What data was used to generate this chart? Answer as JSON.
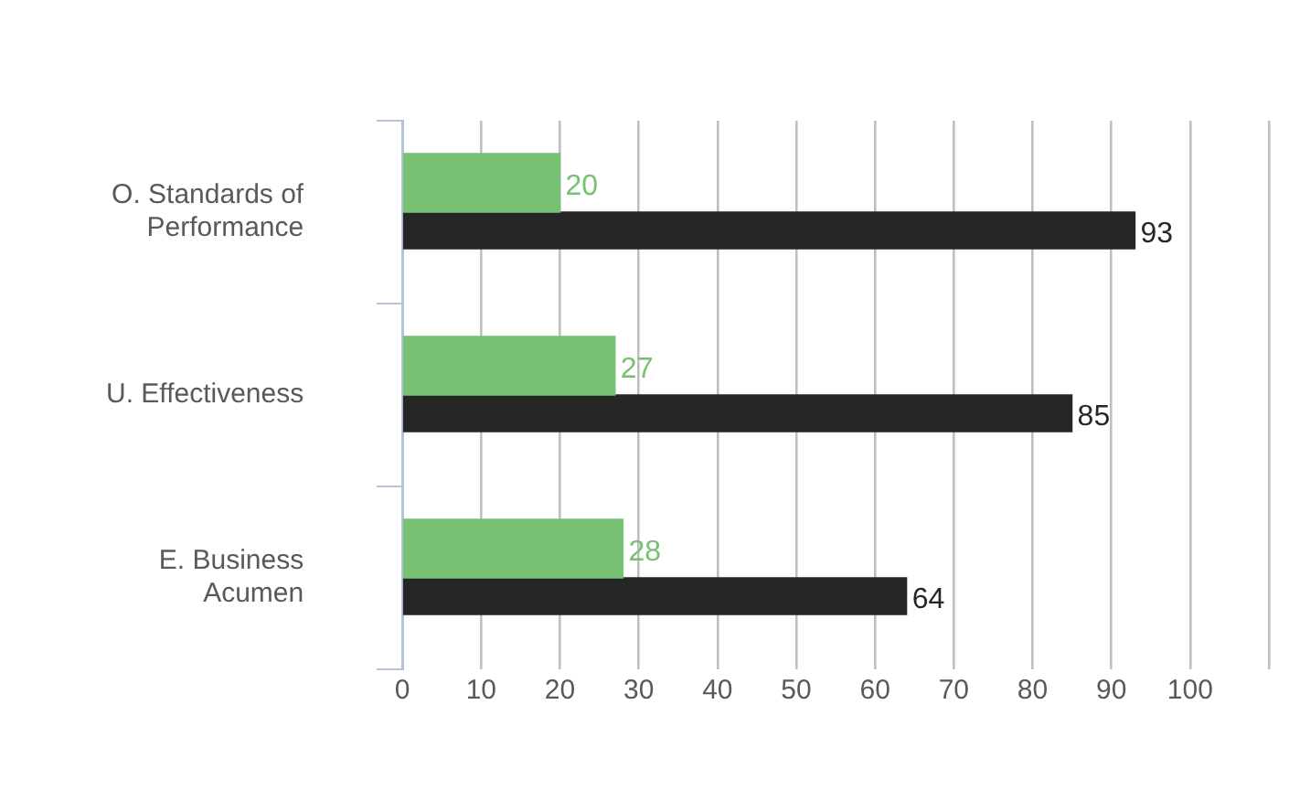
{
  "chart_data": {
    "type": "bar",
    "orientation": "horizontal",
    "categories": [
      "O. Standards of Performance",
      "U. Effectiveness",
      "E. Business Acumen"
    ],
    "series": [
      {
        "color": "#77c173",
        "values": [
          20,
          27,
          28
        ]
      },
      {
        "color": "#262626",
        "values": [
          93,
          85,
          64
        ]
      }
    ],
    "xlim": [
      0,
      110
    ],
    "xticks": [
      0,
      10,
      20,
      30,
      40,
      50,
      60,
      70,
      80,
      90,
      100,
      {
        "value": 110,
        "label": null
      }
    ],
    "grid": "x",
    "legend": false,
    "data_labels": true
  }
}
